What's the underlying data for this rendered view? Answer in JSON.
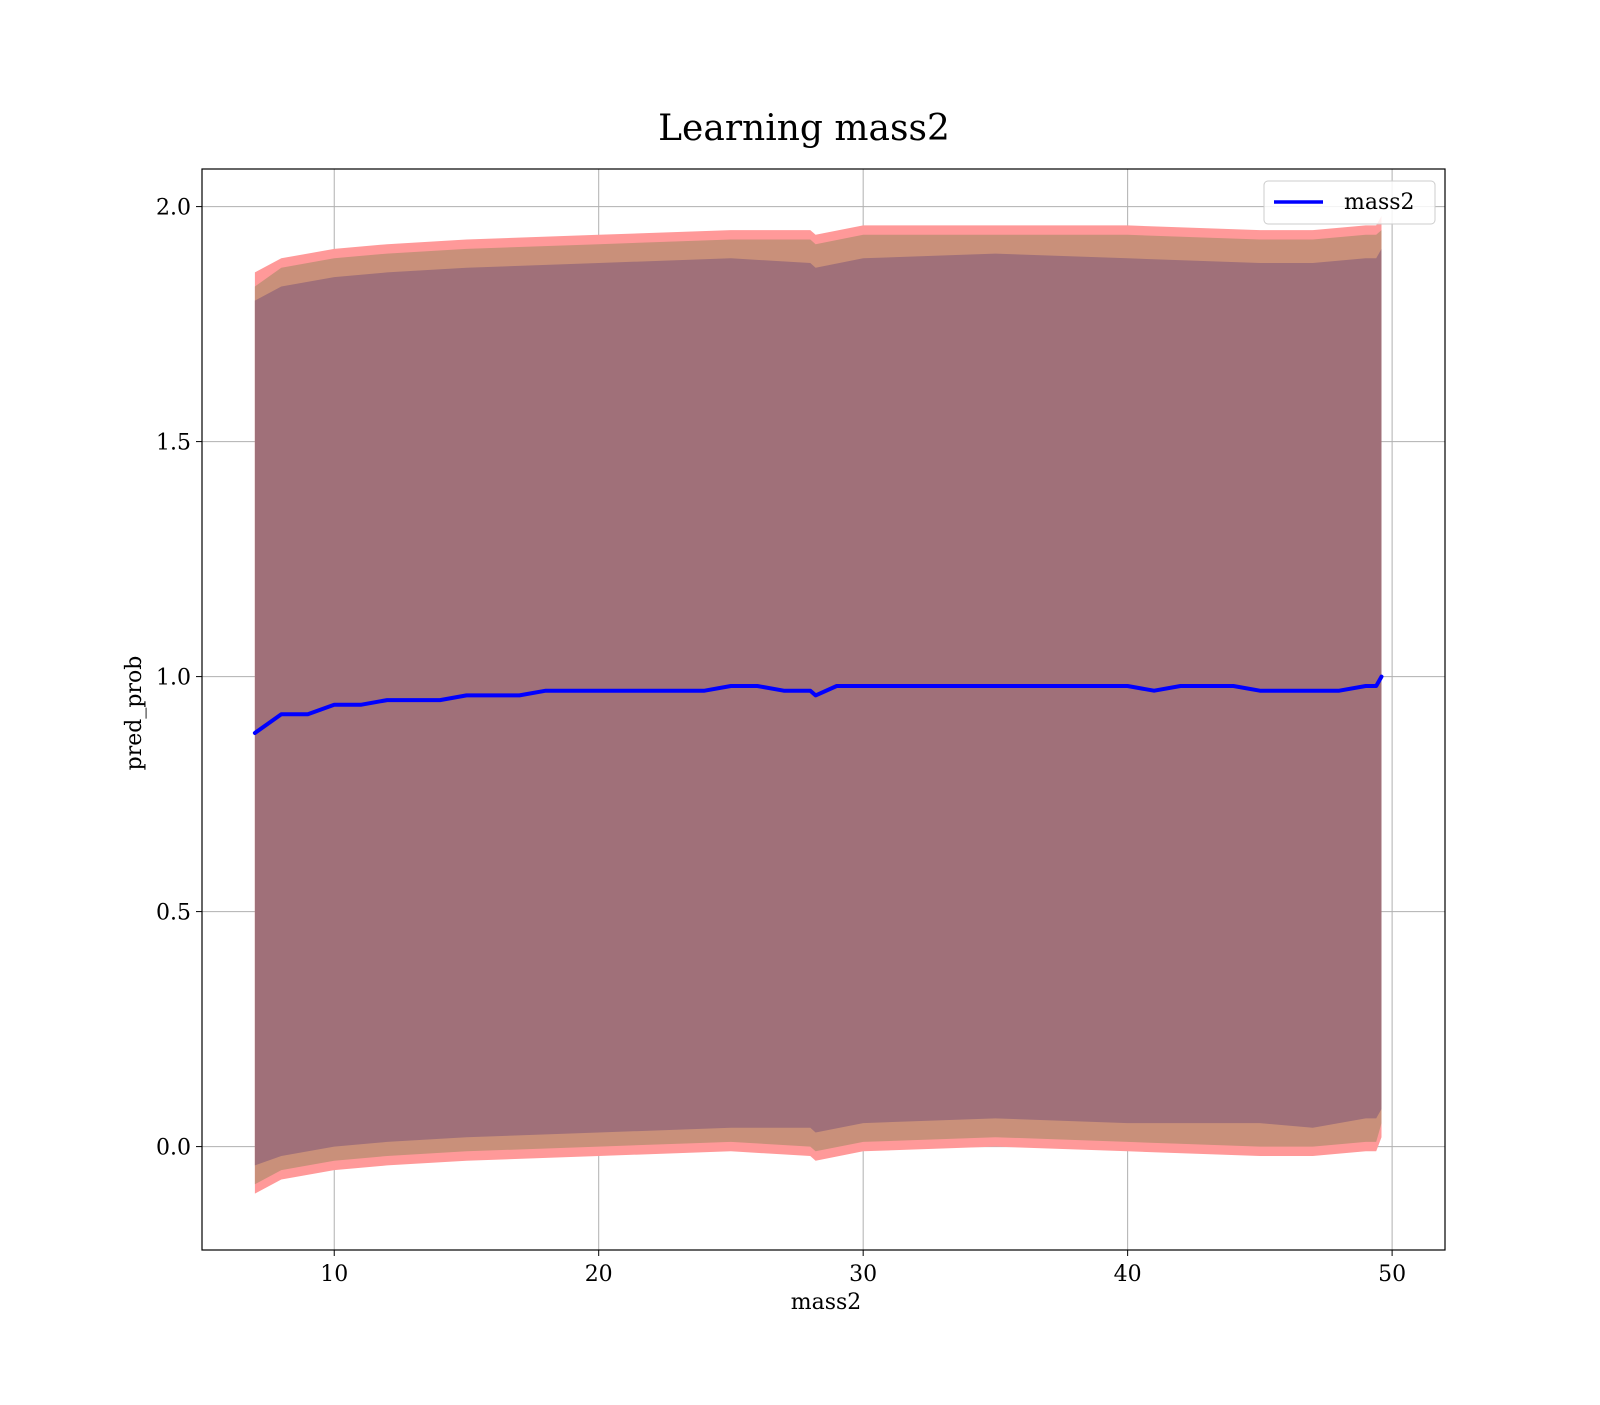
{
  "chart_data": {
    "type": "line",
    "title": "Learning mass2",
    "xlabel": "mass2",
    "ylabel": "pred_prob",
    "xlim": [
      5,
      52
    ],
    "ylim": [
      -0.22,
      2.08
    ],
    "grid": true,
    "legend_position": "top-right",
    "x_ticks": [
      10,
      20,
      30,
      40,
      50
    ],
    "x_tick_labels": [
      "10",
      "20",
      "30",
      "40",
      "50"
    ],
    "y_ticks": [
      0.0,
      0.5,
      1.0,
      1.5,
      2.0
    ],
    "y_tick_labels": [
      "0.0",
      "0.5",
      "1.0",
      "1.5",
      "2.0"
    ],
    "colors": {
      "line": "#0000ff",
      "outer_band": "#ff9999",
      "middle_band": "#c9907a",
      "inner_band": "#a07079",
      "grid": "#b0b0b0"
    },
    "series": [
      {
        "name": "mass2",
        "x": [
          7,
          7.5,
          8,
          8.5,
          9,
          9.5,
          10,
          11,
          12,
          13,
          14,
          15,
          16,
          17,
          18,
          19,
          20,
          21,
          22,
          23,
          24,
          25,
          26,
          27,
          28,
          28.2,
          29,
          30,
          31,
          32,
          33,
          34,
          35,
          36,
          37,
          38,
          39,
          40,
          41,
          42,
          43,
          44,
          45,
          46,
          47,
          48,
          49,
          49.4,
          49.6
        ],
        "y": [
          0.88,
          0.9,
          0.92,
          0.92,
          0.92,
          0.93,
          0.94,
          0.94,
          0.95,
          0.95,
          0.95,
          0.96,
          0.96,
          0.96,
          0.97,
          0.97,
          0.97,
          0.97,
          0.97,
          0.97,
          0.97,
          0.98,
          0.98,
          0.97,
          0.97,
          0.96,
          0.98,
          0.98,
          0.98,
          0.98,
          0.98,
          0.98,
          0.98,
          0.98,
          0.98,
          0.98,
          0.98,
          0.98,
          0.97,
          0.98,
          0.98,
          0.98,
          0.97,
          0.97,
          0.97,
          0.97,
          0.98,
          0.98,
          1.0
        ]
      }
    ],
    "bands": [
      {
        "role": "outer",
        "x": [
          7,
          8,
          10,
          12,
          15,
          20,
          25,
          28,
          28.2,
          30,
          35,
          40,
          45,
          47,
          49,
          49.4,
          49.6
        ],
        "lower": [
          -0.1,
          -0.07,
          -0.05,
          -0.04,
          -0.03,
          -0.02,
          -0.01,
          -0.02,
          -0.03,
          -0.01,
          0.0,
          -0.01,
          -0.02,
          -0.02,
          -0.01,
          -0.01,
          0.02
        ],
        "upper": [
          1.86,
          1.89,
          1.91,
          1.92,
          1.93,
          1.94,
          1.95,
          1.95,
          1.94,
          1.96,
          1.96,
          1.96,
          1.95,
          1.95,
          1.96,
          1.96,
          1.98
        ]
      },
      {
        "role": "middle",
        "x": [
          7,
          8,
          10,
          12,
          15,
          20,
          25,
          28,
          28.2,
          30,
          35,
          40,
          45,
          47,
          49,
          49.4,
          49.6
        ],
        "lower": [
          -0.08,
          -0.05,
          -0.03,
          -0.02,
          -0.01,
          0.0,
          0.01,
          0.0,
          -0.01,
          0.01,
          0.02,
          0.01,
          0.0,
          0.0,
          0.01,
          0.01,
          0.05
        ],
        "upper": [
          1.83,
          1.87,
          1.89,
          1.9,
          1.91,
          1.92,
          1.93,
          1.93,
          1.92,
          1.94,
          1.94,
          1.94,
          1.93,
          1.93,
          1.94,
          1.94,
          1.95
        ]
      },
      {
        "role": "inner",
        "x": [
          7,
          8,
          10,
          12,
          15,
          20,
          25,
          28,
          28.2,
          30,
          35,
          40,
          45,
          47,
          49,
          49.4,
          49.6
        ],
        "lower": [
          -0.04,
          -0.02,
          0.0,
          0.01,
          0.02,
          0.03,
          0.04,
          0.04,
          0.03,
          0.05,
          0.06,
          0.05,
          0.05,
          0.04,
          0.06,
          0.06,
          0.08
        ],
        "upper": [
          1.8,
          1.83,
          1.85,
          1.86,
          1.87,
          1.88,
          1.89,
          1.88,
          1.87,
          1.89,
          1.9,
          1.89,
          1.88,
          1.88,
          1.89,
          1.89,
          1.91
        ]
      }
    ]
  }
}
